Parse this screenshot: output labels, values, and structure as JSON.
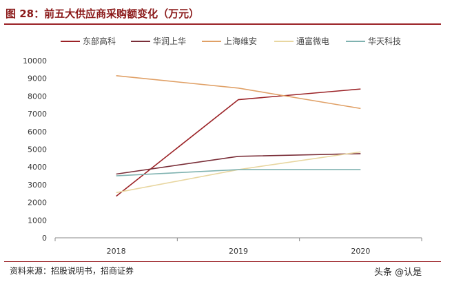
{
  "header": {
    "title": "图 28：前五大供应商采购额变化（万元）"
  },
  "footer": {
    "source": "资料来源：招股说明书，招商证券"
  },
  "watermark": "头条 @认是",
  "chart_data": {
    "type": "line",
    "categories": [
      "2018",
      "2019",
      "2020"
    ],
    "ylim": [
      0,
      10000
    ],
    "yticks": [
      0,
      1000,
      2000,
      3000,
      4000,
      5000,
      6000,
      7000,
      8000,
      9000,
      10000
    ],
    "legend_position": "top",
    "grid": false,
    "series": [
      {
        "name": "东部高科",
        "color": "#9b2226",
        "values": [
          2350,
          7800,
          8400
        ]
      },
      {
        "name": "华润上华",
        "color": "#7a2e38",
        "values": [
          3600,
          4600,
          4750
        ]
      },
      {
        "name": "上海维安",
        "color": "#e0a066",
        "values": [
          9150,
          8450,
          7300
        ]
      },
      {
        "name": "通富微电",
        "color": "#e8d6a0",
        "values": [
          2550,
          3850,
          4850
        ]
      },
      {
        "name": "华天科技",
        "color": "#7fb2b0",
        "values": [
          3500,
          3850,
          3850
        ]
      }
    ]
  }
}
